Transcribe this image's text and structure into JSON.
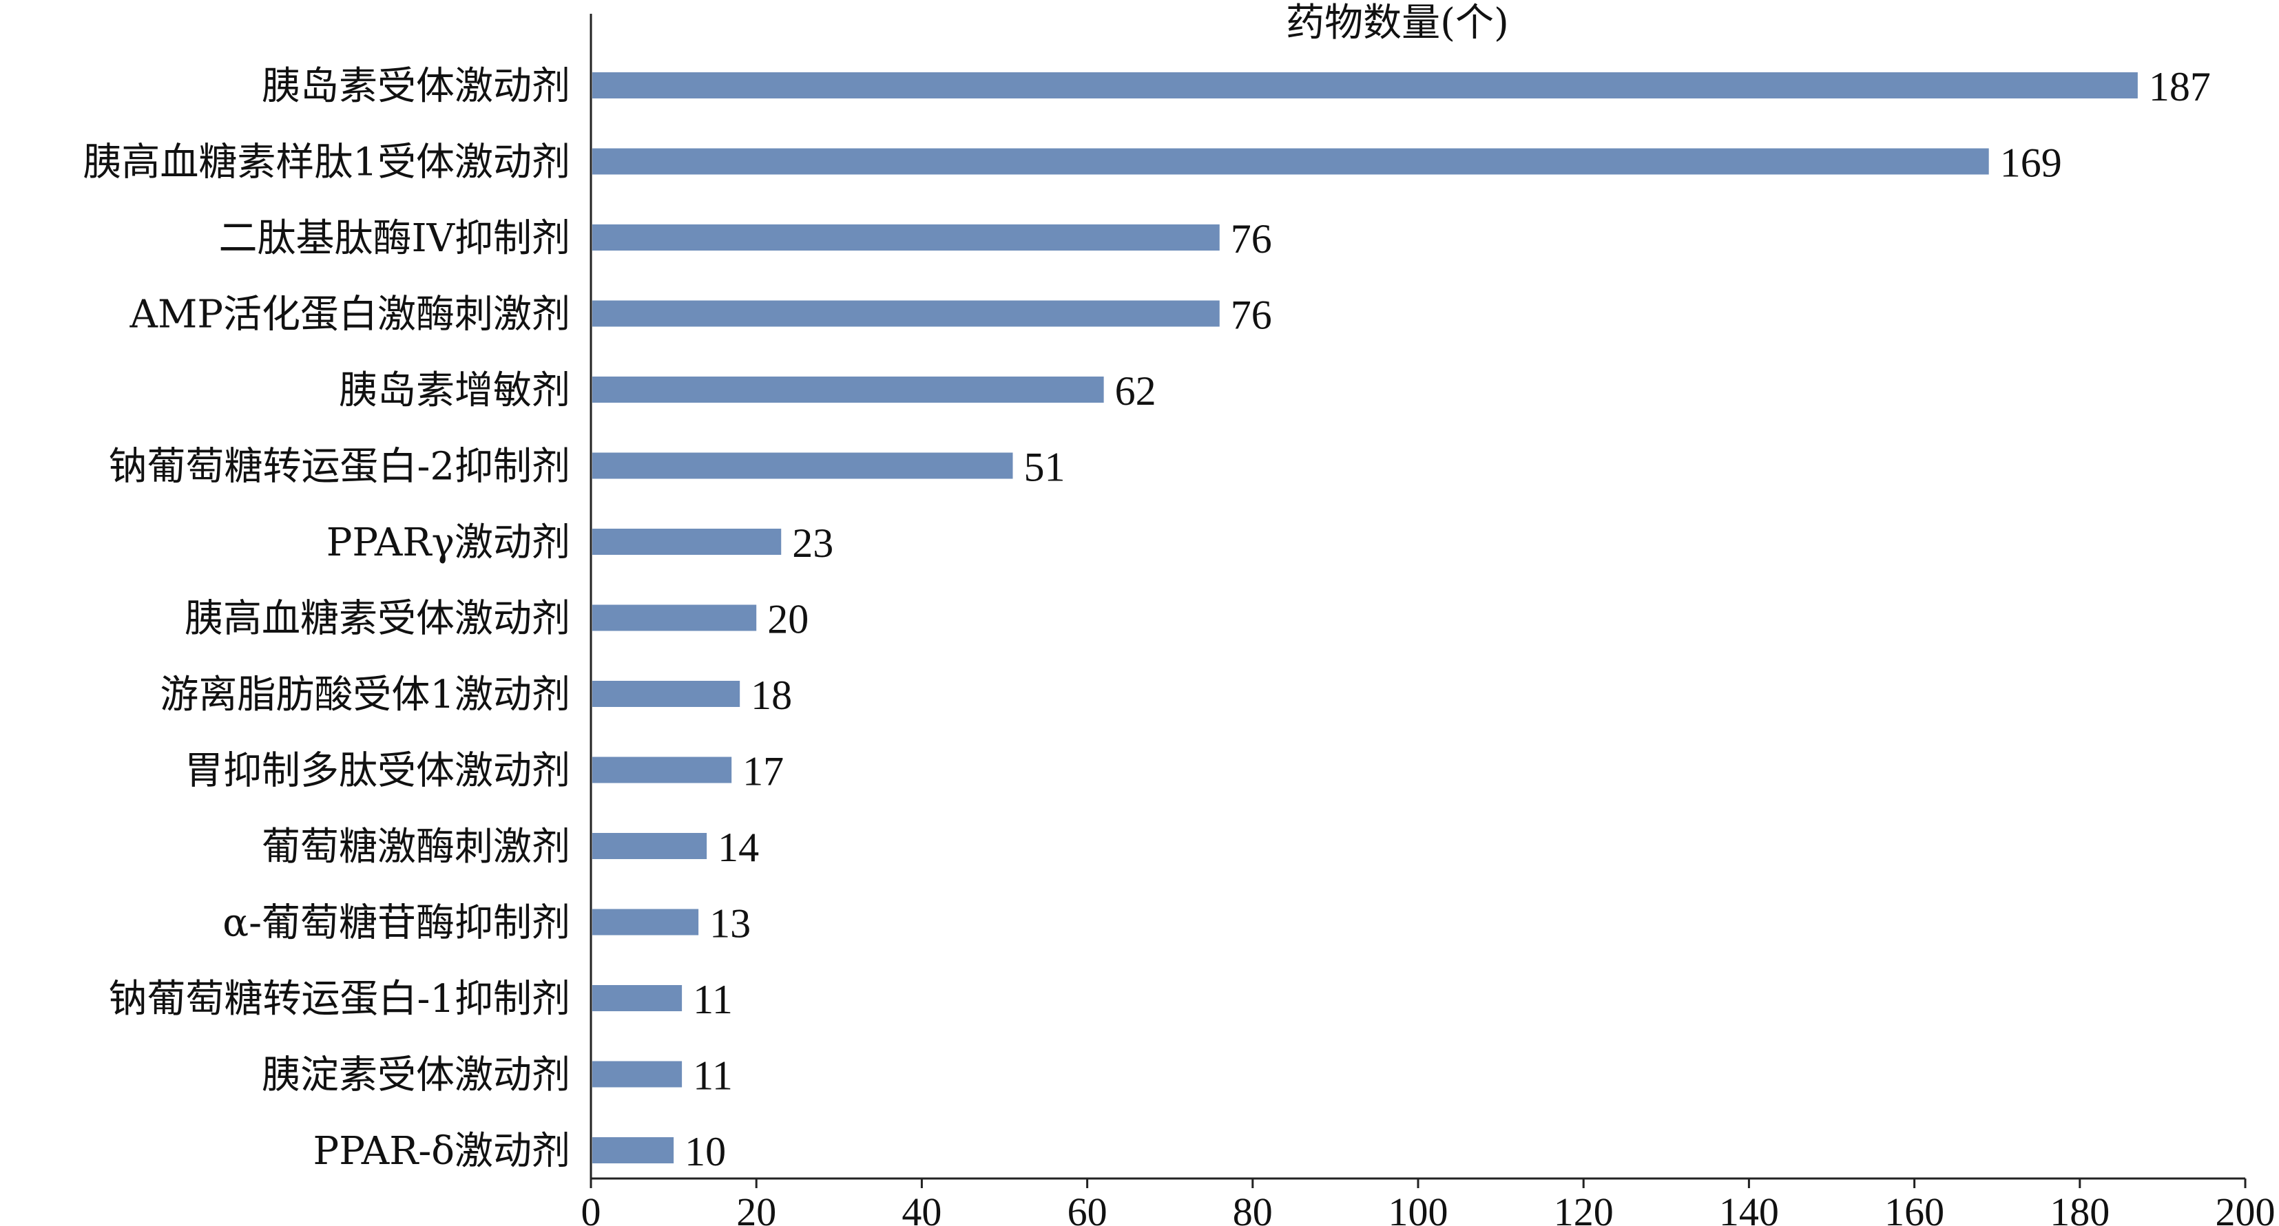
{
  "chart_data": {
    "type": "bar",
    "orientation": "horizontal",
    "title": "",
    "xlabel": "药物数量(个)",
    "ylabel": "",
    "xlim": [
      0,
      200
    ],
    "xticks": [
      0,
      20,
      40,
      60,
      80,
      100,
      120,
      140,
      160,
      180,
      200
    ],
    "grid": false,
    "bar_color": "#6e8db9",
    "categories": [
      "胰岛素受体激动剂",
      "胰高血糖素样肽1受体激动剂",
      "二肽基肽酶IV抑制剂",
      "AMP活化蛋白激酶刺激剂",
      "胰岛素增敏剂",
      "钠葡萄糖转运蛋白-2抑制剂",
      "PPARγ激动剂",
      "胰高血糖素受体激动剂",
      "游离脂肪酸受体1激动剂",
      "胃抑制多肽受体激动剂",
      "葡萄糖激酶刺激剂",
      "α-葡萄糖苷酶抑制剂",
      "钠葡萄糖转运蛋白-1抑制剂",
      "胰淀素受体激动剂",
      "PPAR-δ激动剂"
    ],
    "values": [
      187,
      169,
      76,
      76,
      62,
      51,
      23,
      20,
      18,
      17,
      14,
      13,
      11,
      11,
      10
    ]
  }
}
